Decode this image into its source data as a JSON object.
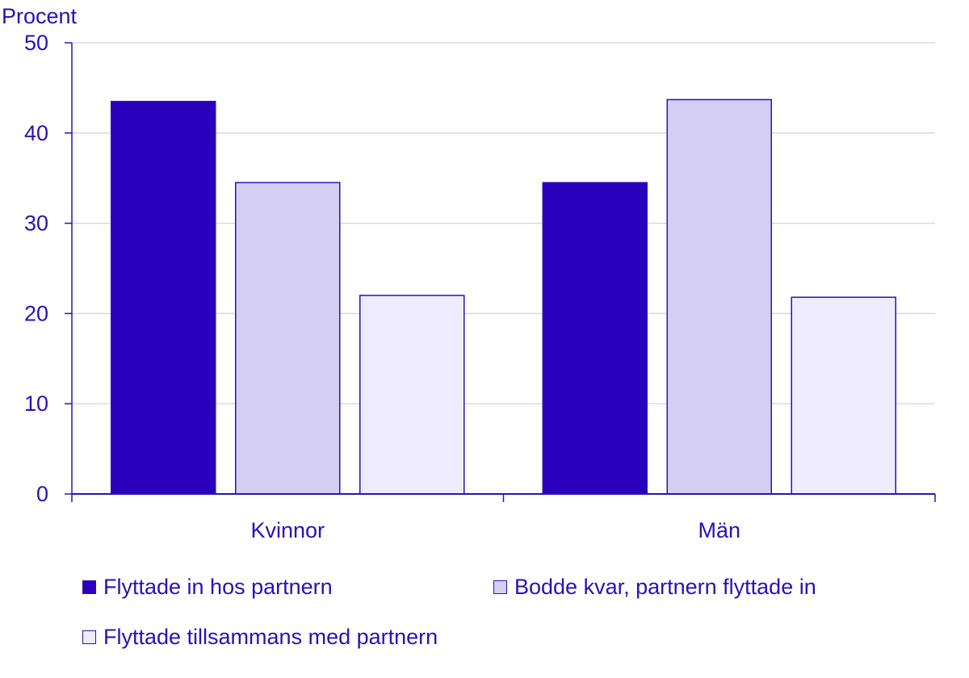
{
  "chart_data": {
    "type": "bar",
    "ylabel": "Procent",
    "xlabel": "",
    "ylim": [
      0,
      50
    ],
    "yticks": [
      0,
      10,
      20,
      30,
      40,
      50
    ],
    "categories": [
      "Kvinnor",
      "Män"
    ],
    "grid": true,
    "legend_position": "bottom",
    "series": [
      {
        "name": "Flyttade in hos partnern",
        "values": [
          43.5,
          34.5
        ],
        "color": "#2a00bd"
      },
      {
        "name": "Bodde kvar, partnern flyttade in",
        "values": [
          34.5,
          43.7
        ],
        "color": "#d4cff2"
      },
      {
        "name": "Flyttade tillsammans med partnern",
        "values": [
          22.0,
          21.8
        ],
        "color": "#eeecfc"
      }
    ]
  },
  "colors": {
    "axis": "#2a11b8",
    "grid": "#d8d8e8",
    "bar_border": "#2a11b8"
  }
}
